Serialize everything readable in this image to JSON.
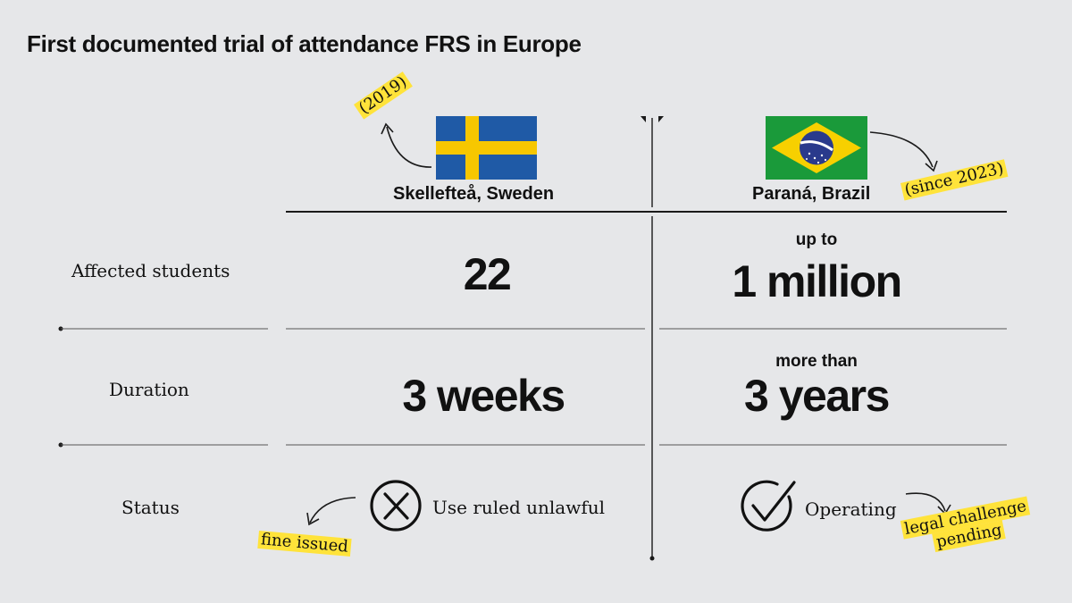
{
  "title": "First documented trial of attendance FRS in Europe",
  "columns": {
    "sweden": {
      "location": "Skellefteå, Sweden",
      "year_note": "(2019)",
      "flag": "sweden-flag",
      "flag_colors": {
        "field": "#1f5aa6",
        "cross": "#f7c700"
      }
    },
    "brazil": {
      "location": "Paraná, Brazil",
      "year_note": "(since 2023)",
      "flag": "brazil-flag",
      "flag_colors": {
        "field": "#1a9a3a",
        "diamond": "#f7d000",
        "globe": "#2a3a8c"
      }
    }
  },
  "rows": {
    "affected": {
      "label": "Affected students",
      "sweden_value": "22",
      "brazil_prefix": "up to",
      "brazil_value": "1 million"
    },
    "duration": {
      "label": "Duration",
      "sweden_value": "3 weeks",
      "brazil_prefix": "more than",
      "brazil_value": "3 years"
    },
    "status": {
      "label": "Status",
      "sweden_value": "Use ruled unlawful",
      "sweden_icon": "x-circle-icon",
      "sweden_note": "fine issued",
      "brazil_value": "Operating",
      "brazil_icon": "check-circle-icon",
      "brazil_note_line1": "legal challenge",
      "brazil_note_line2": "pending"
    }
  },
  "colors": {
    "background": "#e6e7e9",
    "text": "#111111",
    "highlight": "#ffe33a"
  }
}
